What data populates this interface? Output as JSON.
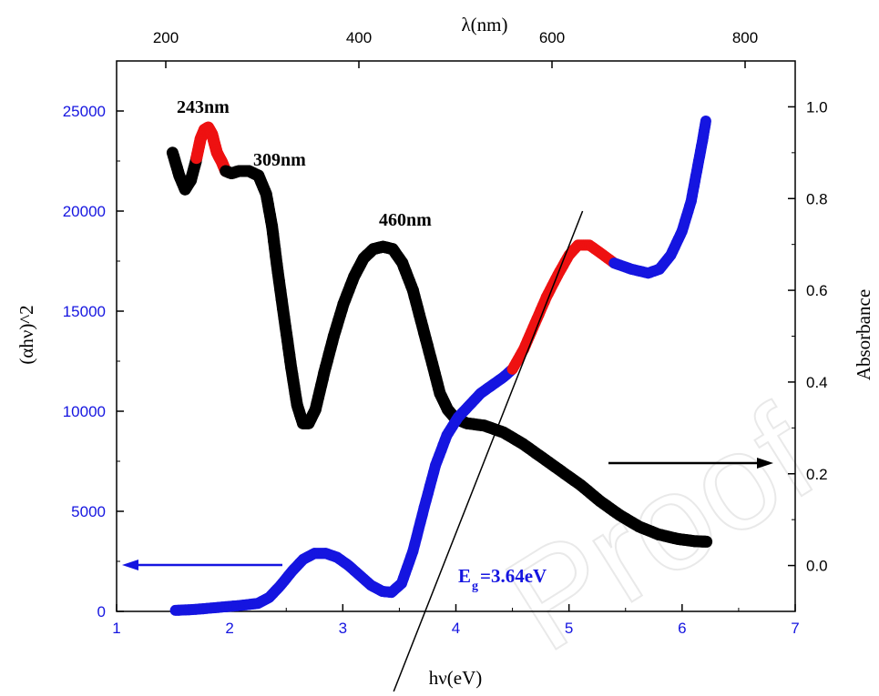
{
  "chart_data": {
    "type": "line",
    "watermark": "Proof",
    "x_bottom": {
      "label": "hν(eV)",
      "range": [
        1,
        7
      ],
      "ticks": [
        1,
        2,
        3,
        4,
        5,
        6,
        7
      ]
    },
    "x_top": {
      "label": "λ(nm)",
      "ticks": [
        200,
        400,
        600,
        800
      ]
    },
    "y_left": {
      "label": "(αhν)^2",
      "range": [
        0,
        27500
      ],
      "ticks": [
        0,
        5000,
        10000,
        15000,
        20000,
        25000
      ]
    },
    "y_right": {
      "label": "Absorbance",
      "range": [
        -0.1,
        1.1
      ],
      "ticks": [
        0.0,
        0.2,
        0.4,
        0.6,
        0.8,
        1.0
      ]
    },
    "series": [
      {
        "axis": "top-right",
        "color": "#000000",
        "highlight_color": "#ee1111",
        "highlight_ranges": [
          [
            232,
            262
          ]
        ],
        "points": [
          [
            207,
            0.9
          ],
          [
            214,
            0.85
          ],
          [
            220,
            0.82
          ],
          [
            226,
            0.84
          ],
          [
            231,
            0.88
          ],
          [
            236,
            0.93
          ],
          [
            240,
            0.95
          ],
          [
            244,
            0.955
          ],
          [
            248,
            0.94
          ],
          [
            253,
            0.9
          ],
          [
            258,
            0.88
          ],
          [
            262,
            0.86
          ],
          [
            268,
            0.855
          ],
          [
            276,
            0.86
          ],
          [
            286,
            0.86
          ],
          [
            296,
            0.85
          ],
          [
            304,
            0.81
          ],
          [
            310,
            0.74
          ],
          [
            316,
            0.64
          ],
          [
            324,
            0.52
          ],
          [
            330,
            0.43
          ],
          [
            336,
            0.35
          ],
          [
            342,
            0.31
          ],
          [
            348,
            0.31
          ],
          [
            355,
            0.34
          ],
          [
            364,
            0.42
          ],
          [
            374,
            0.5
          ],
          [
            384,
            0.57
          ],
          [
            395,
            0.63
          ],
          [
            405,
            0.67
          ],
          [
            415,
            0.69
          ],
          [
            425,
            0.695
          ],
          [
            435,
            0.69
          ],
          [
            445,
            0.66
          ],
          [
            456,
            0.6
          ],
          [
            466,
            0.52
          ],
          [
            476,
            0.44
          ],
          [
            484,
            0.375
          ],
          [
            492,
            0.34
          ],
          [
            500,
            0.32
          ],
          [
            512,
            0.31
          ],
          [
            530,
            0.305
          ],
          [
            550,
            0.29
          ],
          [
            570,
            0.265
          ],
          [
            590,
            0.235
          ],
          [
            610,
            0.205
          ],
          [
            630,
            0.175
          ],
          [
            650,
            0.14
          ],
          [
            670,
            0.11
          ],
          [
            690,
            0.085
          ],
          [
            710,
            0.068
          ],
          [
            730,
            0.058
          ],
          [
            748,
            0.053
          ],
          [
            760,
            0.052
          ]
        ]
      },
      {
        "axis": "bottom-left",
        "color": "#1515e0",
        "highlight_color": "#ee1111",
        "highlight_ranges": [
          [
            4.5,
            5.4
          ]
        ],
        "points": [
          [
            1.52,
            50
          ],
          [
            1.7,
            100
          ],
          [
            1.9,
            200
          ],
          [
            2.1,
            300
          ],
          [
            2.25,
            400
          ],
          [
            2.35,
            700
          ],
          [
            2.45,
            1300
          ],
          [
            2.55,
            2000
          ],
          [
            2.65,
            2600
          ],
          [
            2.75,
            2900
          ],
          [
            2.85,
            2900
          ],
          [
            2.95,
            2700
          ],
          [
            3.05,
            2300
          ],
          [
            3.15,
            1800
          ],
          [
            3.25,
            1300
          ],
          [
            3.35,
            1000
          ],
          [
            3.43,
            950
          ],
          [
            3.52,
            1400
          ],
          [
            3.62,
            3000
          ],
          [
            3.72,
            5200
          ],
          [
            3.82,
            7300
          ],
          [
            3.92,
            8800
          ],
          [
            4.02,
            9700
          ],
          [
            4.12,
            10300
          ],
          [
            4.22,
            10900
          ],
          [
            4.32,
            11300
          ],
          [
            4.42,
            11700
          ],
          [
            4.5,
            12100
          ],
          [
            4.6,
            13100
          ],
          [
            4.7,
            14400
          ],
          [
            4.8,
            15700
          ],
          [
            4.9,
            16800
          ],
          [
            5.0,
            17800
          ],
          [
            5.08,
            18300
          ],
          [
            5.18,
            18300
          ],
          [
            5.28,
            17900
          ],
          [
            5.4,
            17400
          ],
          [
            5.55,
            17100
          ],
          [
            5.7,
            16900
          ],
          [
            5.8,
            17100
          ],
          [
            5.9,
            17800
          ],
          [
            6.0,
            19000
          ],
          [
            6.08,
            20500
          ],
          [
            6.13,
            22000
          ],
          [
            6.18,
            23500
          ],
          [
            6.21,
            24500
          ]
        ]
      }
    ],
    "annotations": {
      "peaks": [
        {
          "label": "243nm",
          "at": [
            252,
            0.955
          ]
        },
        {
          "label": "309nm",
          "at": [
            311,
            0.86
          ]
        },
        {
          "label": "460nm",
          "at": [
            431,
            0.695
          ]
        }
      ],
      "band_gap": {
        "label": "E",
        "subscript": "g",
        "value": "=3.64eV",
        "fit_line": [
          [
            3.45,
            -4000
          ],
          [
            5.12,
            20000
          ]
        ]
      },
      "arrows": [
        {
          "points_to": "left axis",
          "color": "#1515e0"
        },
        {
          "points_to": "right axis",
          "color": "#000000"
        }
      ]
    }
  }
}
